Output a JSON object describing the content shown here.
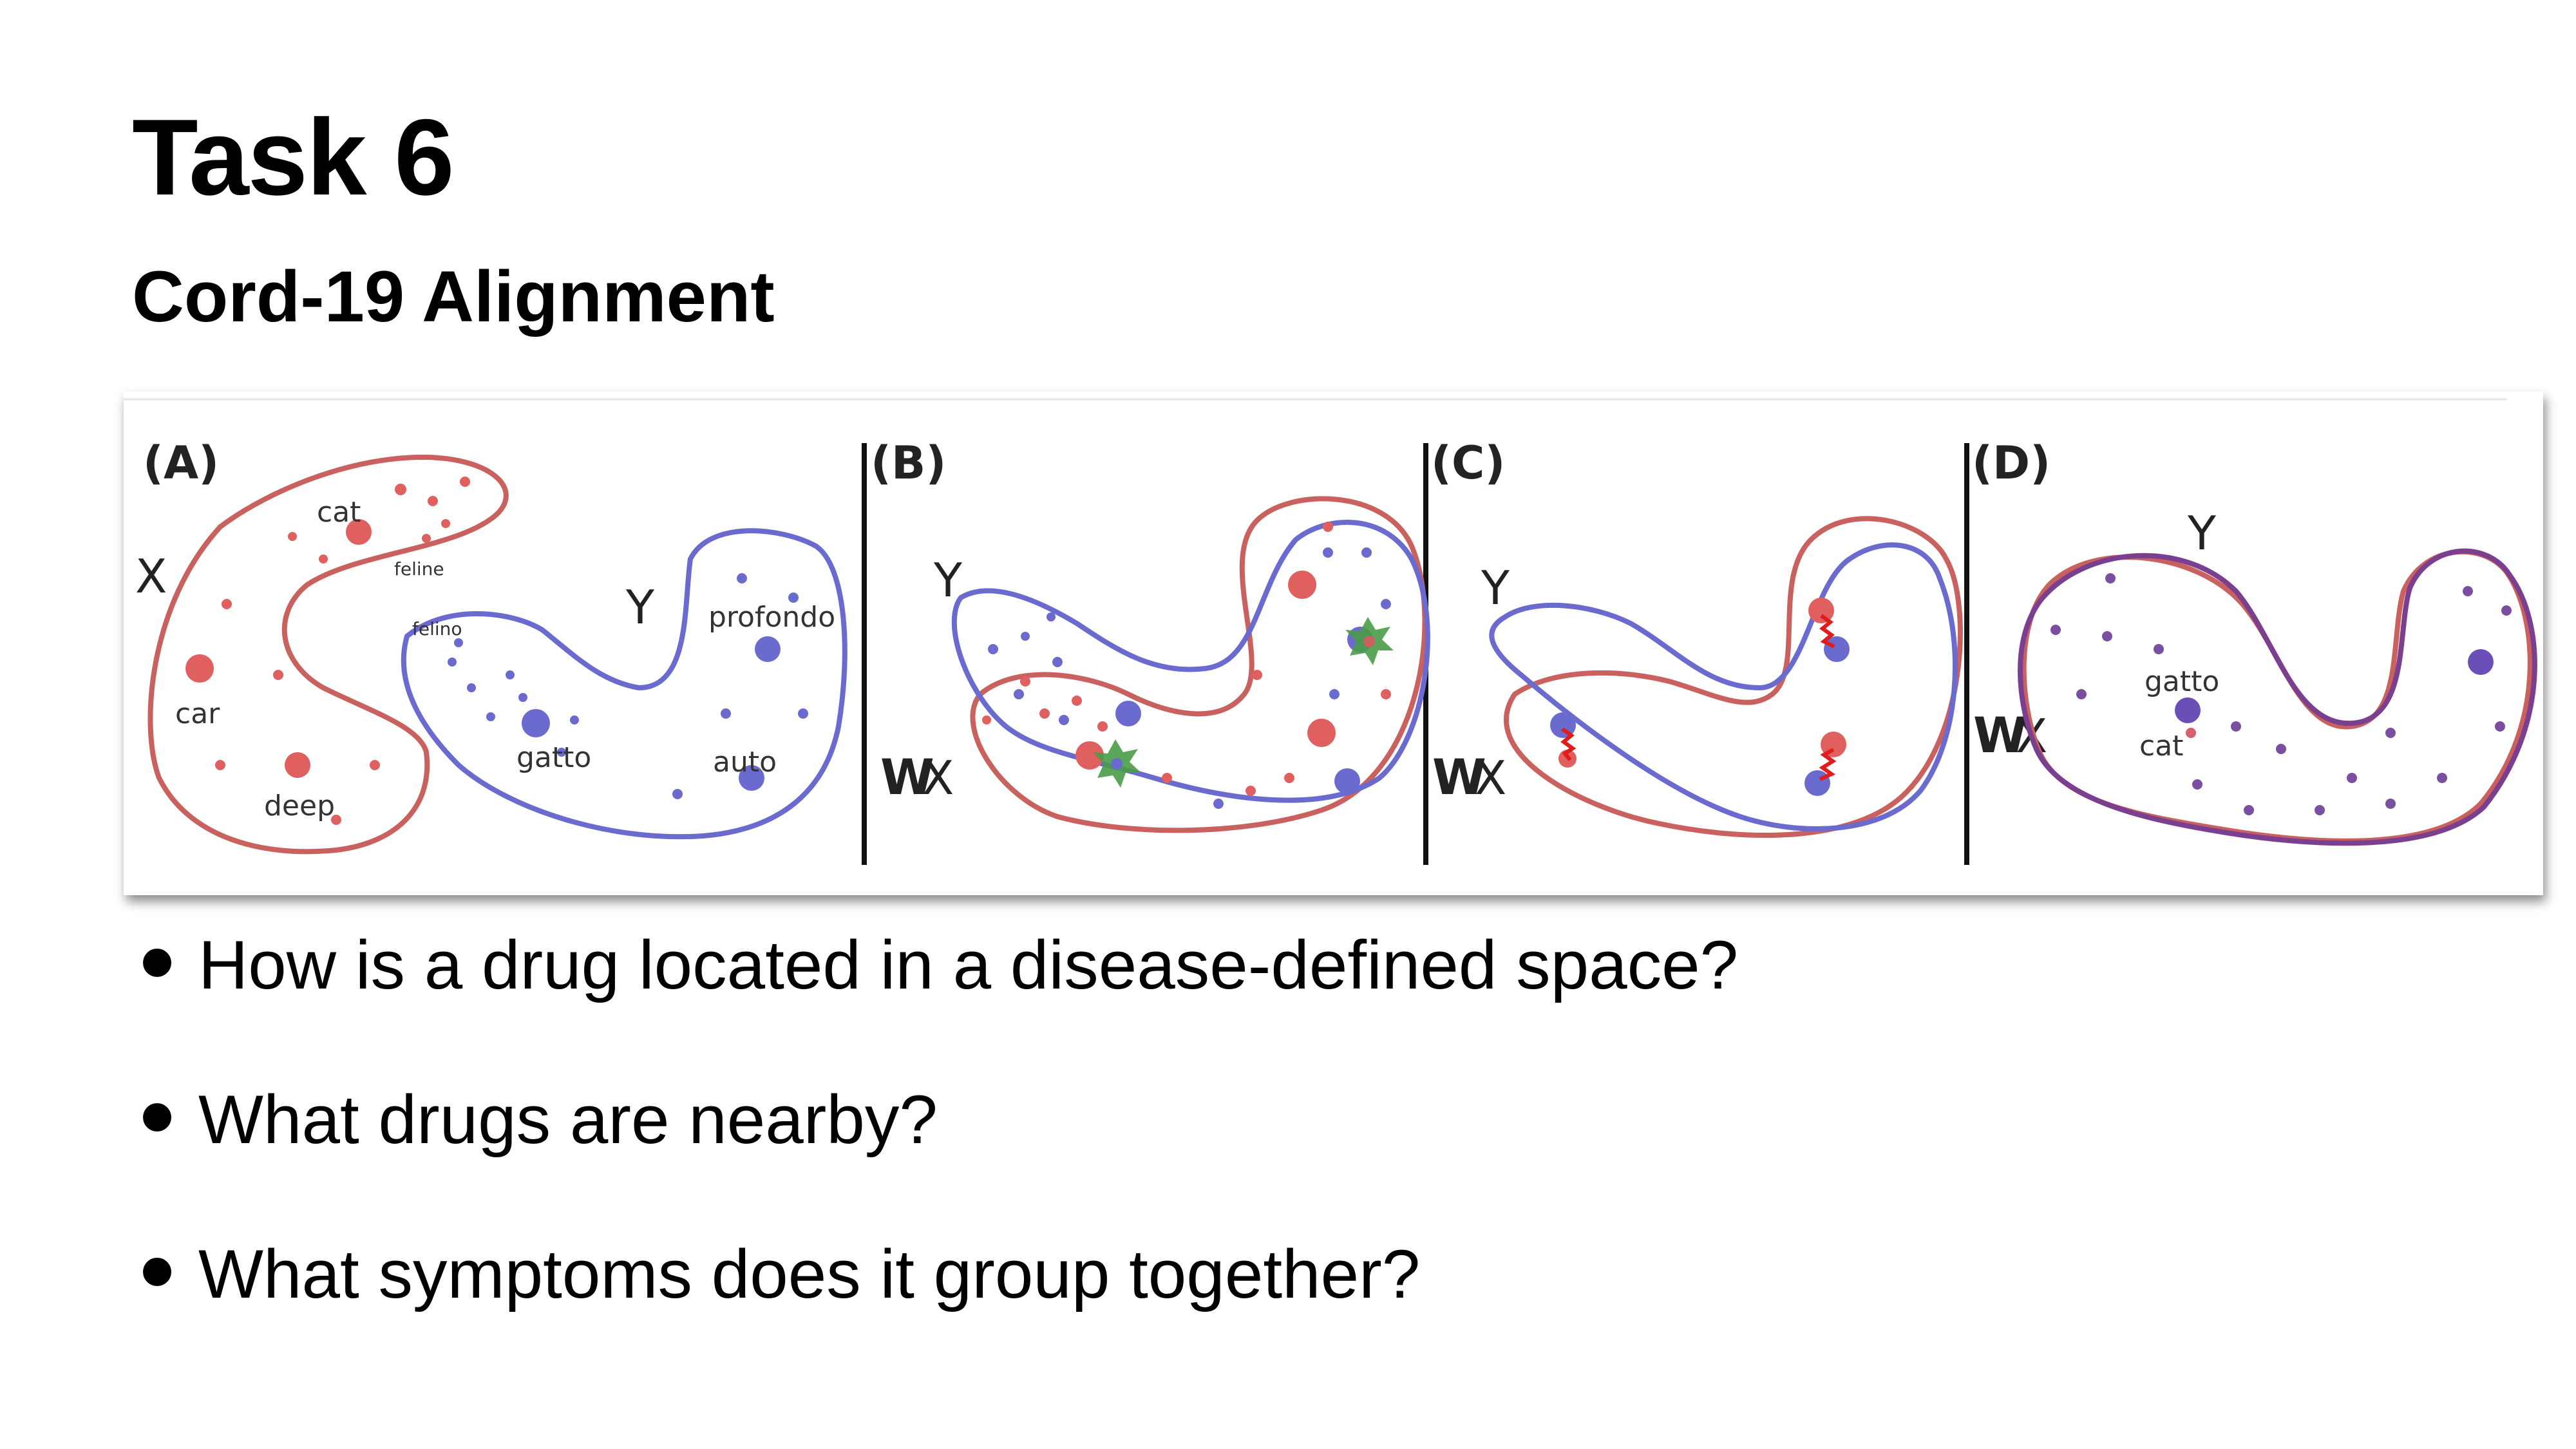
{
  "slide": {
    "title": "Task 6",
    "subtitle": "Cord-19 Alignment"
  },
  "figure": {
    "colors": {
      "x_space": "#c9615f",
      "y_space": "#6a6acf",
      "aligned": "#7a3f8f",
      "anchor_star": "#3f9a3f",
      "link": "#e01c1c"
    },
    "panels": [
      {
        "letter": "(A)",
        "axis_x": "X",
        "axis_y": "Y",
        "words_x": [
          "cat",
          "feline",
          "car",
          "deep"
        ],
        "words_y": [
          "felino",
          "profondo",
          "gatto",
          "auto"
        ]
      },
      {
        "letter": "(B)",
        "axis_x_w": "W",
        "axis_x": "X",
        "axis_y": "Y"
      },
      {
        "letter": "(C)",
        "axis_x_w": "W",
        "axis_x": "X",
        "axis_y": "Y"
      },
      {
        "letter": "(D)",
        "axis_x_w": "W",
        "axis_x": "X",
        "axis_y": "Y",
        "words": [
          "gatto",
          "cat"
        ]
      }
    ]
  },
  "bullets": [
    "How is a drug located in a disease-defined space?",
    "What drugs are nearby?",
    "What symptoms does it group together?"
  ]
}
